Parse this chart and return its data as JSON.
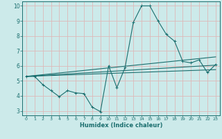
{
  "xlabel": "Humidex (Indice chaleur)",
  "bg_color": "#cceaea",
  "grid_color": "#ddb8b8",
  "line_color": "#1a6e6e",
  "xlim": [
    -0.5,
    23.5
  ],
  "ylim": [
    2.7,
    10.3
  ],
  "xticks": [
    0,
    1,
    2,
    3,
    4,
    5,
    6,
    7,
    8,
    9,
    10,
    11,
    12,
    13,
    14,
    15,
    16,
    17,
    18,
    19,
    20,
    21,
    22,
    23
  ],
  "yticks": [
    3,
    4,
    5,
    6,
    7,
    8,
    9,
    10
  ],
  "series": [
    [
      0,
      5.3
    ],
    [
      1,
      5.3
    ],
    [
      2,
      4.75
    ],
    [
      3,
      4.35
    ],
    [
      4,
      3.95
    ],
    [
      5,
      4.35
    ],
    [
      6,
      4.2
    ],
    [
      7,
      4.15
    ],
    [
      8,
      3.25
    ],
    [
      9,
      2.95
    ],
    [
      10,
      6.0
    ],
    [
      11,
      4.55
    ],
    [
      12,
      5.9
    ],
    [
      13,
      8.9
    ],
    [
      14,
      10.0
    ],
    [
      15,
      10.0
    ],
    [
      16,
      9.0
    ],
    [
      17,
      8.1
    ],
    [
      18,
      7.65
    ],
    [
      19,
      6.3
    ],
    [
      20,
      6.2
    ],
    [
      21,
      6.4
    ],
    [
      22,
      5.55
    ],
    [
      23,
      6.1
    ]
  ],
  "lines": [
    [
      [
        0,
        5.3
      ],
      [
        23,
        6.05
      ]
    ],
    [
      [
        0,
        5.3
      ],
      [
        23,
        5.75
      ]
    ],
    [
      [
        0,
        5.3
      ],
      [
        23,
        6.6
      ]
    ]
  ]
}
